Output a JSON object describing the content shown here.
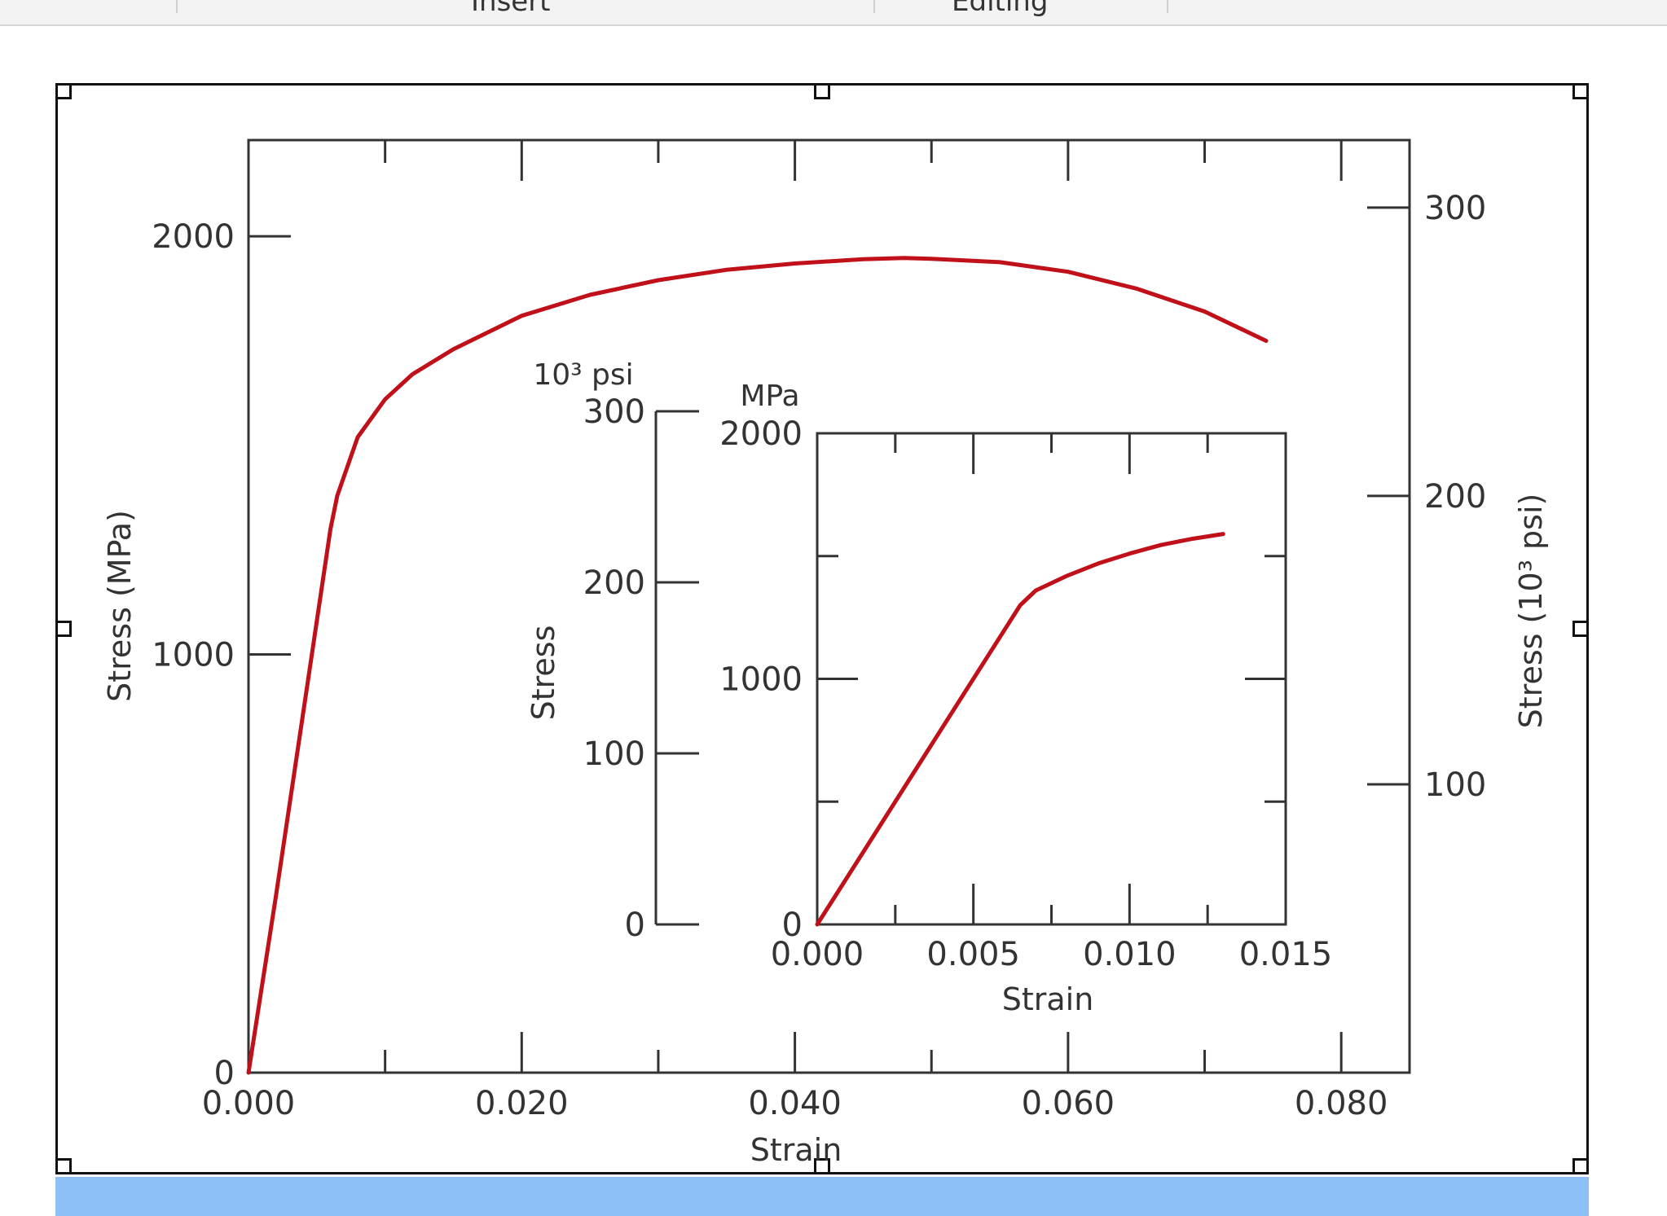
{
  "ribbon": {
    "tabs": [
      {
        "label": "Insert"
      },
      {
        "label": "Editing"
      }
    ]
  },
  "chart_data": [
    {
      "type": "line",
      "title": "",
      "xlabel": "Strain",
      "ylabel": "Stress (MPa)",
      "y2label": "Stress (10³ psi)",
      "xlim": [
        0,
        0.085
      ],
      "ylim": [
        0,
        2230
      ],
      "y2lim": [
        0,
        323.4
      ],
      "x_ticks": [
        "0.000",
        "0.020",
        "0.040",
        "0.060",
        "0.080"
      ],
      "y_ticks": [
        "0",
        "1000",
        "2000"
      ],
      "y2_ticks": [
        "100",
        "200",
        "300"
      ],
      "grid": false,
      "color": "#c0101a",
      "series": [
        {
          "x": [
            0,
            0.002,
            0.004,
            0.006,
            0.0065,
            0.008,
            0.01,
            0.012,
            0.015,
            0.02,
            0.025,
            0.03,
            0.035,
            0.04,
            0.045,
            0.048,
            0.05,
            0.055,
            0.06,
            0.065,
            0.07,
            0.0745
          ],
          "y": [
            0,
            420,
            860,
            1300,
            1380,
            1520,
            1610,
            1670,
            1730,
            1810,
            1860,
            1895,
            1920,
            1935,
            1945,
            1948,
            1946,
            1938,
            1915,
            1875,
            1820,
            1750
          ]
        }
      ]
    },
    {
      "type": "line",
      "title": "",
      "xlabel": "Strain",
      "ylabel": "Stress",
      "y_unit_left": "10³ psi",
      "y_unit_right": "MPa",
      "xlim": [
        0,
        0.015
      ],
      "ylim": [
        0,
        2000
      ],
      "ylim_psi": [
        0,
        300
      ],
      "x_ticks": [
        "0.000",
        "0.005",
        "0.010",
        "0.015"
      ],
      "y_ticks": [
        "0",
        "1000",
        "2000"
      ],
      "y_psi_ticks": [
        "0",
        "100",
        "200",
        "300"
      ],
      "grid": false,
      "color": "#c0101a",
      "series": [
        {
          "x": [
            0,
            0.002,
            0.004,
            0.006,
            0.0065,
            0.007,
            0.008,
            0.009,
            0.01,
            0.011,
            0.012,
            0.013
          ],
          "y": [
            0,
            400,
            800,
            1200,
            1300,
            1360,
            1420,
            1470,
            1510,
            1545,
            1570,
            1590
          ]
        }
      ]
    }
  ]
}
